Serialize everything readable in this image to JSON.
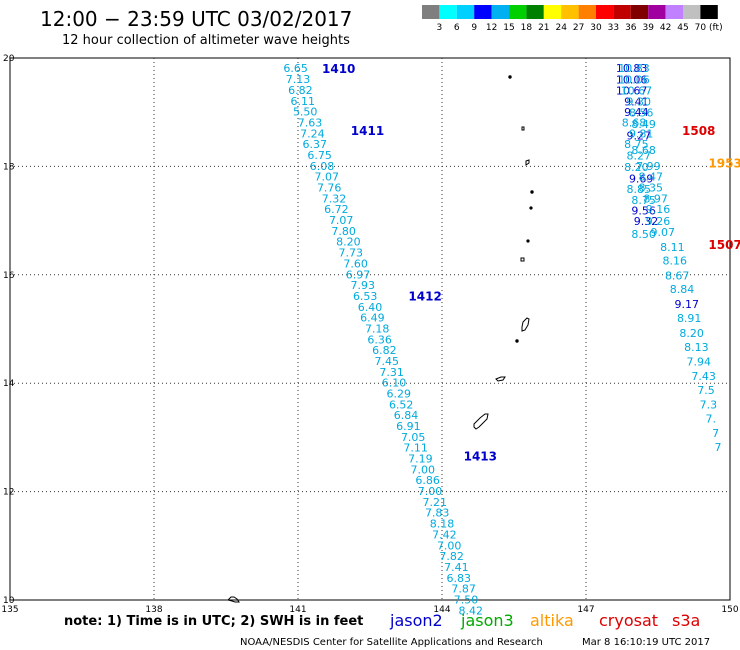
{
  "header": {
    "title": "12:00  −  23:59 UTC 03/02/2017",
    "subtitle": "12 hour collection of altimeter wave heights"
  },
  "legend": {
    "colors": [
      "#7f7f7f",
      "#00ffff",
      "#00d0ff",
      "#0000ff",
      "#00b0f0",
      "#00d000",
      "#008000",
      "#ffff00",
      "#ffc000",
      "#ff8000",
      "#ff0000",
      "#c00000",
      "#800000",
      "#a000a0",
      "#c080ff",
      "#c0c0c0",
      "#000000"
    ],
    "labels": [
      "3",
      "6",
      "9",
      "12",
      "15",
      "18",
      "21",
      "24",
      "27",
      "30",
      "33",
      "36",
      "39",
      "42",
      "45",
      "70"
    ],
    "unit": "(ft)"
  },
  "map": {
    "lon_min": 135,
    "lon_max": 150,
    "lat_min": 10,
    "lat_max": 20,
    "lon_ticks": [
      "135",
      "138",
      "141",
      "144",
      "147",
      "150"
    ],
    "lat_ticks": [
      "10",
      "12",
      "14",
      "16",
      "18",
      "20"
    ]
  },
  "passes": [
    {
      "id": "1410",
      "color": "#0000cc",
      "lat": 19.8,
      "lon": 141.5
    },
    {
      "id": "1411",
      "color": "#0000cc",
      "lat": 18.65,
      "lon": 142.1
    },
    {
      "id": "1412",
      "color": "#0000cc",
      "lat": 15.6,
      "lon": 143.3
    },
    {
      "id": "1413",
      "color": "#0000cc",
      "lat": 12.65,
      "lon": 144.45
    },
    {
      "id": "1508",
      "color": "#dd0000",
      "lat": 18.65,
      "lon": 149.0
    },
    {
      "id": "1953",
      "color": "#ff9900",
      "lat": 18.05,
      "lon": 149.55
    },
    {
      "id": "1507",
      "color": "#dd0000",
      "lat": 16.55,
      "lon": 149.55
    }
  ],
  "tracks": [
    {
      "name": "track-west",
      "values": [
        {
          "v": "6.65",
          "lat": 19.82,
          "lon": 140.95,
          "c": "#00aadd"
        },
        {
          "v": "7.13",
          "lat": 19.61,
          "lon": 141.0,
          "c": "#00aadd"
        },
        {
          "v": "6.82",
          "lat": 19.41,
          "lon": 141.05,
          "c": "#00aadd"
        },
        {
          "v": "6.11",
          "lat": 19.21,
          "lon": 141.1,
          "c": "#00aadd"
        },
        {
          "v": "5.50",
          "lat": 19.01,
          "lon": 141.15,
          "c": "#00aadd"
        },
        {
          "v": "7.63",
          "lat": 18.81,
          "lon": 141.25,
          "c": "#00aadd"
        },
        {
          "v": "7.24",
          "lat": 18.61,
          "lon": 141.3,
          "c": "#00aadd"
        },
        {
          "v": "6.37",
          "lat": 18.41,
          "lon": 141.35,
          "c": "#00aadd"
        },
        {
          "v": "6.75",
          "lat": 18.21,
          "lon": 141.45,
          "c": "#00aadd"
        },
        {
          "v": "6.08",
          "lat": 18.01,
          "lon": 141.5,
          "c": "#00aadd"
        },
        {
          "v": "7.07",
          "lat": 17.81,
          "lon": 141.6,
          "c": "#00aadd"
        },
        {
          "v": "7.76",
          "lat": 17.61,
          "lon": 141.65,
          "c": "#00aadd"
        },
        {
          "v": "7.32",
          "lat": 17.41,
          "lon": 141.75,
          "c": "#00aadd"
        },
        {
          "v": "6.72",
          "lat": 17.21,
          "lon": 141.8,
          "c": "#00aadd"
        },
        {
          "v": "7.07",
          "lat": 17.01,
          "lon": 141.9,
          "c": "#00aadd"
        },
        {
          "v": "7.80",
          "lat": 16.81,
          "lon": 141.95,
          "c": "#00aadd"
        },
        {
          "v": "8.20",
          "lat": 16.61,
          "lon": 142.05,
          "c": "#00aadd"
        },
        {
          "v": "7.73",
          "lat": 16.41,
          "lon": 142.1,
          "c": "#00aadd"
        },
        {
          "v": "7.60",
          "lat": 16.21,
          "lon": 142.2,
          "c": "#00aadd"
        },
        {
          "v": "6.97",
          "lat": 16.01,
          "lon": 142.25,
          "c": "#00aadd"
        },
        {
          "v": "7.93",
          "lat": 15.81,
          "lon": 142.35,
          "c": "#00aadd"
        },
        {
          "v": "6.53",
          "lat": 15.61,
          "lon": 142.4,
          "c": "#00aadd"
        },
        {
          "v": "6.40",
          "lat": 15.41,
          "lon": 142.5,
          "c": "#00aadd"
        },
        {
          "v": "6.49",
          "lat": 15.21,
          "lon": 142.55,
          "c": "#00aadd"
        },
        {
          "v": "7.18",
          "lat": 15.01,
          "lon": 142.65,
          "c": "#00aadd"
        },
        {
          "v": "6.36",
          "lat": 14.81,
          "lon": 142.7,
          "c": "#00aadd"
        },
        {
          "v": "6.82",
          "lat": 14.61,
          "lon": 142.8,
          "c": "#00aadd"
        },
        {
          "v": "7.45",
          "lat": 14.41,
          "lon": 142.85,
          "c": "#00aadd"
        },
        {
          "v": "7.31",
          "lat": 14.21,
          "lon": 142.95,
          "c": "#00aadd"
        },
        {
          "v": "6.10",
          "lat": 14.01,
          "lon": 143.0,
          "c": "#00aadd"
        },
        {
          "v": "6.29",
          "lat": 13.81,
          "lon": 143.1,
          "c": "#00aadd"
        },
        {
          "v": "6.52",
          "lat": 13.61,
          "lon": 143.15,
          "c": "#00aadd"
        },
        {
          "v": "6.84",
          "lat": 13.41,
          "lon": 143.25,
          "c": "#00aadd"
        },
        {
          "v": "6.91",
          "lat": 13.21,
          "lon": 143.3,
          "c": "#00aadd"
        },
        {
          "v": "7.05",
          "lat": 13.01,
          "lon": 143.4,
          "c": "#00aadd"
        },
        {
          "v": "7.11",
          "lat": 12.81,
          "lon": 143.45,
          "c": "#00aadd"
        },
        {
          "v": "7.19",
          "lat": 12.61,
          "lon": 143.55,
          "c": "#00aadd"
        },
        {
          "v": "7.00",
          "lat": 12.41,
          "lon": 143.6,
          "c": "#00aadd"
        },
        {
          "v": "6.86",
          "lat": 12.21,
          "lon": 143.7,
          "c": "#00aadd"
        },
        {
          "v": "7.00",
          "lat": 12.01,
          "lon": 143.75,
          "c": "#00aadd"
        },
        {
          "v": "7.21",
          "lat": 11.81,
          "lon": 143.85,
          "c": "#00aadd"
        },
        {
          "v": "7.83",
          "lat": 11.61,
          "lon": 143.9,
          "c": "#00aadd"
        },
        {
          "v": "8.18",
          "lat": 11.41,
          "lon": 144.0,
          "c": "#00aadd"
        },
        {
          "v": "7.42",
          "lat": 11.21,
          "lon": 144.05,
          "c": "#00aadd"
        },
        {
          "v": "7.00",
          "lat": 11.01,
          "lon": 144.15,
          "c": "#00aadd"
        },
        {
          "v": "7.82",
          "lat": 10.81,
          "lon": 144.2,
          "c": "#00aadd"
        },
        {
          "v": "7.41",
          "lat": 10.61,
          "lon": 144.3,
          "c": "#00aadd"
        },
        {
          "v": "6.83",
          "lat": 10.41,
          "lon": 144.35,
          "c": "#00aadd"
        },
        {
          "v": "7.87",
          "lat": 10.21,
          "lon": 144.45,
          "c": "#00aadd"
        },
        {
          "v": "7.50",
          "lat": 10.01,
          "lon": 144.5,
          "c": "#00aadd"
        },
        {
          "v": "8.42",
          "lat": 9.81,
          "lon": 144.6,
          "c": "#00aadd"
        }
      ]
    },
    {
      "name": "track-east-a",
      "values": [
        {
          "v": "10.83",
          "lat": 19.82,
          "lon": 147.95,
          "c": "#0000cc"
        },
        {
          "v": "10.06",
          "lat": 19.6,
          "lon": 147.95,
          "c": "#0000cc"
        },
        {
          "v": "10.67",
          "lat": 19.4,
          "lon": 147.95,
          "c": "#0000cc"
        },
        {
          "v": "9.41",
          "lat": 19.2,
          "lon": 148.05,
          "c": "#0000cc"
        },
        {
          "v": "9.44",
          "lat": 19.0,
          "lon": 148.05,
          "c": "#0000cc"
        },
        {
          "v": "9.27",
          "lat": 18.57,
          "lon": 148.1,
          "c": "#0000cc"
        },
        {
          "v": "9.69",
          "lat": 17.78,
          "lon": 148.15,
          "c": "#0000cc"
        },
        {
          "v": "9.56",
          "lat": 17.19,
          "lon": 148.2,
          "c": "#0000cc"
        },
        {
          "v": "9.32",
          "lat": 16.99,
          "lon": 148.25,
          "c": "#0000cc"
        }
      ]
    },
    {
      "name": "track-east-b",
      "values": [
        {
          "v": "10.83",
          "lat": 19.82,
          "lon": 148.0,
          "c": "#00aadd"
        },
        {
          "v": "10.06",
          "lat": 19.6,
          "lon": 148.0,
          "c": "#00aadd"
        },
        {
          "v": "10.67",
          "lat": 19.4,
          "lon": 148.05,
          "c": "#00aadd"
        },
        {
          "v": "9.30",
          "lat": 19.2,
          "lon": 148.1,
          "c": "#00aadd"
        },
        {
          "v": "8.56",
          "lat": 18.99,
          "lon": 148.15,
          "c": "#00aadd"
        },
        {
          "v": "8.68",
          "lat": 18.81,
          "lon": 148.0,
          "c": "#00aadd"
        },
        {
          "v": "8.49",
          "lat": 18.78,
          "lon": 148.2,
          "c": "#00aadd"
        },
        {
          "v": "9.81",
          "lat": 18.61,
          "lon": 148.15,
          "c": "#00aadd"
        },
        {
          "v": "8.75",
          "lat": 18.41,
          "lon": 148.05,
          "c": "#00aadd"
        },
        {
          "v": "8.68",
          "lat": 18.3,
          "lon": 148.2,
          "c": "#00aadd"
        },
        {
          "v": "8.27",
          "lat": 18.2,
          "lon": 148.1,
          "c": "#00aadd"
        },
        {
          "v": "7.99",
          "lat": 18.01,
          "lon": 148.3,
          "c": "#00aadd"
        },
        {
          "v": "8.20",
          "lat": 17.99,
          "lon": 148.05,
          "c": "#00aadd"
        },
        {
          "v": "8.47",
          "lat": 17.81,
          "lon": 148.35,
          "c": "#00aadd"
        },
        {
          "v": "8.35",
          "lat": 17.61,
          "lon": 148.35,
          "c": "#00aadd"
        },
        {
          "v": "8.85",
          "lat": 17.58,
          "lon": 148.1,
          "c": "#00aadd"
        },
        {
          "v": "8.97",
          "lat": 17.41,
          "lon": 148.45,
          "c": "#00aadd"
        },
        {
          "v": "8.75",
          "lat": 17.38,
          "lon": 148.2,
          "c": "#00aadd"
        },
        {
          "v": "9.16",
          "lat": 17.21,
          "lon": 148.5,
          "c": "#00aadd"
        },
        {
          "v": "9.26",
          "lat": 16.99,
          "lon": 148.5,
          "c": "#00aadd"
        },
        {
          "v": "8.50",
          "lat": 16.75,
          "lon": 148.2,
          "c": "#00aadd"
        },
        {
          "v": "9.07",
          "lat": 16.79,
          "lon": 148.6,
          "c": "#00aadd"
        },
        {
          "v": "8.11",
          "lat": 16.51,
          "lon": 148.8,
          "c": "#00aadd"
        },
        {
          "v": "8.16",
          "lat": 16.26,
          "lon": 148.85,
          "c": "#00aadd"
        },
        {
          "v": "8.67",
          "lat": 15.99,
          "lon": 148.9,
          "c": "#00aadd"
        },
        {
          "v": "8.84",
          "lat": 15.74,
          "lon": 149.0,
          "c": "#00aadd"
        },
        {
          "v": "9.17",
          "lat": 15.46,
          "lon": 149.1,
          "c": "#0000cc"
        },
        {
          "v": "8.91",
          "lat": 15.2,
          "lon": 149.15,
          "c": "#00aadd"
        },
        {
          "v": "8.20",
          "lat": 14.93,
          "lon": 149.2,
          "c": "#00aadd"
        },
        {
          "v": "8.13",
          "lat": 14.67,
          "lon": 149.3,
          "c": "#00aadd"
        },
        {
          "v": "7.94",
          "lat": 14.4,
          "lon": 149.35,
          "c": "#00aadd"
        },
        {
          "v": "7.43",
          "lat": 14.13,
          "lon": 149.45,
          "c": "#00aadd"
        },
        {
          "v": "7.5",
          "lat": 13.87,
          "lon": 149.5,
          "c": "#00aadd"
        },
        {
          "v": "7.3",
          "lat": 13.61,
          "lon": 149.55,
          "c": "#00aadd"
        },
        {
          "v": "7.",
          "lat": 13.35,
          "lon": 149.6,
          "c": "#00aadd"
        },
        {
          "v": "7",
          "lat": 13.08,
          "lon": 149.7,
          "c": "#00aadd"
        },
        {
          "v": "7",
          "lat": 12.82,
          "lon": 149.75,
          "c": "#00aadd"
        }
      ]
    }
  ],
  "footer": {
    "note": "note: 1) Time is in UTC; 2) SWH is in feet",
    "satellites": [
      {
        "name": "jason2",
        "color": "#0000cc"
      },
      {
        "name": "jason3",
        "color": "#00aa00"
      },
      {
        "name": "altika",
        "color": "#ff9900"
      },
      {
        "name": "cryosat",
        "color": "#dd0000"
      },
      {
        "name": "s3a",
        "color": "#dd0000"
      }
    ],
    "credit": "NOAA/NESDIS Center for Satellite Applications and Research",
    "timestamp": "Mar  8 16:10:19 UTC 2017"
  }
}
